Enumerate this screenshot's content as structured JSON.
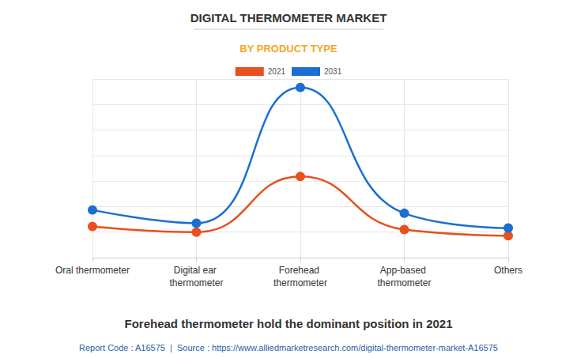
{
  "chart_data": {
    "type": "line",
    "title": "DIGITAL THERMOMETER MARKET",
    "subtitle": "BY PRODUCT TYPE",
    "footnote": "Forehead thermometer hold the dominant position in 2021",
    "source": "Report Code : A16575  |  Source : https://www.alliedmarketresearch.com/digital-thermometer-market-A16575",
    "categories": [
      "Oral thermometer",
      "Digital ear thermometer",
      "Forehead thermometer",
      "App-based thermometer",
      "Others"
    ],
    "series": [
      {
        "name": "2021",
        "color": "#e8501e",
        "values": [
          1.22,
          1.0,
          3.18,
          1.1,
          0.86
        ]
      },
      {
        "name": "2031",
        "color": "#1a6fd0",
        "values": [
          1.87,
          1.35,
          6.67,
          1.74,
          1.16
        ]
      }
    ],
    "ylim": [
      0,
      7
    ],
    "yticks": [
      0,
      1,
      2,
      3,
      4,
      5,
      6,
      7
    ],
    "grid": true,
    "legend": "top",
    "tick_labels": "x",
    "line_style": "smooth",
    "marker": "circle"
  }
}
